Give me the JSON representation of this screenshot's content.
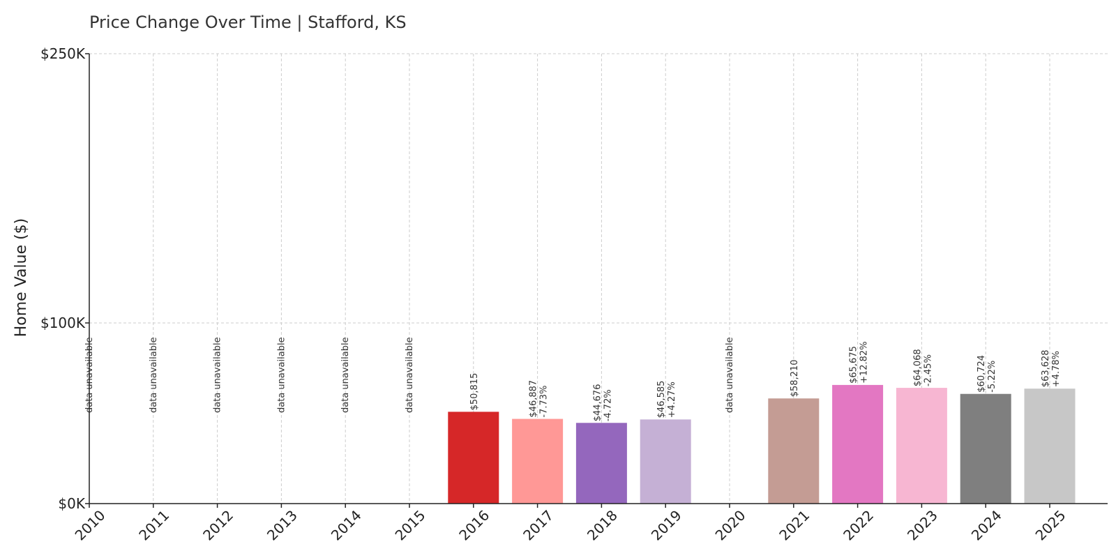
{
  "chart_data": {
    "type": "bar",
    "title": "Price Change Over Time | Stafford, KS",
    "xlabel": "",
    "ylabel": "Home Value ($)",
    "ylim": [
      0,
      250000
    ],
    "yticks": [
      {
        "value": 0,
        "label": "$0K"
      },
      {
        "value": 100000,
        "label": "$100K"
      },
      {
        "value": 250000,
        "label": "$250K"
      }
    ],
    "grid": true,
    "unavailable_label": "data unavailable",
    "categories": [
      "2010",
      "2011",
      "2012",
      "2013",
      "2014",
      "2015",
      "2016",
      "2017",
      "2018",
      "2019",
      "2020",
      "2021",
      "2022",
      "2023",
      "2024",
      "2025"
    ],
    "values": [
      null,
      null,
      null,
      null,
      null,
      null,
      50815,
      46887,
      44676,
      46585,
      null,
      58210,
      65675,
      64068,
      60724,
      63628
    ],
    "value_labels": [
      "",
      "",
      "",
      "",
      "",
      "",
      "$50,815",
      "$46,887",
      "$44,676",
      "$46,585",
      "",
      "$58,210",
      "$65,675",
      "$64,068",
      "$60,724",
      "$63,628"
    ],
    "change_labels": [
      "",
      "",
      "",
      "",
      "",
      "",
      "",
      "-7.73%",
      "-4.72%",
      "+4.27%",
      "",
      "",
      "+12.82%",
      "-2.45%",
      "-5.22%",
      "+4.78%"
    ],
    "colors": [
      "#1f77b4",
      "#aec7e8",
      "#ff7f0e",
      "#ffbb78",
      "#2ca02c",
      "#98df8a",
      "#d62728",
      "#ff9896",
      "#9467bd",
      "#c5b0d5",
      "#8c564b",
      "#c49c94",
      "#e377c2",
      "#f7b6d2",
      "#7f7f7f",
      "#c7c7c7"
    ]
  }
}
